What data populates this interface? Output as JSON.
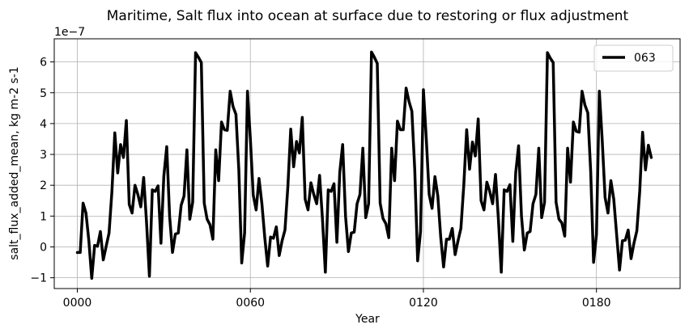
{
  "chart_data": {
    "type": "line",
    "title": "Maritime, Salt flux into ocean at surface due to restoring or flux adjustment",
    "xlabel": "Year",
    "ylabel": "salt_flux_added_mean, kg m-2 s-1",
    "y_offset_label": "1e−7",
    "x_ticks": [
      0,
      60,
      120,
      180
    ],
    "x_tick_labels": [
      "0000",
      "0060",
      "0120",
      "0180"
    ],
    "y_ticks": [
      -1,
      0,
      1,
      2,
      3,
      4,
      5,
      6
    ],
    "y_tick_labels": [
      "−1",
      "0",
      "1",
      "2",
      "3",
      "4",
      "5",
      "6"
    ],
    "xlim": [
      -8,
      209
    ],
    "ylim": [
      -1.35,
      6.75
    ],
    "grid": true,
    "legend_position": "top-right",
    "series": [
      {
        "name": "063",
        "color": "#000000",
        "x": [
          0,
          1,
          2,
          3,
          4,
          5,
          6,
          7,
          8,
          9,
          10,
          11,
          12,
          13,
          14,
          15,
          16,
          17,
          18,
          19,
          20,
          21,
          22,
          23,
          24,
          25,
          26,
          27,
          28,
          29,
          30,
          31,
          32,
          33,
          34,
          35,
          36,
          37,
          38,
          39,
          40,
          41,
          42,
          43,
          44,
          45,
          46,
          47,
          48,
          49,
          50,
          51,
          52,
          53,
          54,
          55,
          56,
          57,
          58,
          59,
          60,
          61,
          62,
          63,
          64,
          65,
          66,
          67,
          68,
          69,
          70,
          71,
          72,
          73,
          74,
          75,
          76,
          77,
          78,
          79,
          80,
          81,
          82,
          83,
          84,
          85,
          86,
          87,
          88,
          89,
          90,
          91,
          92,
          93,
          94,
          95,
          96,
          97,
          98,
          99,
          100,
          101,
          102,
          103,
          104,
          105,
          106,
          107,
          108,
          109,
          110,
          111,
          112,
          113,
          114,
          115,
          116,
          117,
          118,
          119,
          120,
          121,
          122,
          123,
          124,
          125,
          126,
          127,
          128,
          129,
          130,
          131,
          132,
          133,
          134,
          135,
          136,
          137,
          138,
          139,
          140,
          141,
          142,
          143,
          144,
          145,
          146,
          147,
          148,
          149,
          150,
          151,
          152,
          153,
          154,
          155,
          156,
          157,
          158,
          159,
          160,
          161,
          162,
          163,
          164,
          165,
          166,
          167,
          168,
          169,
          170,
          171,
          172,
          173,
          174,
          175,
          176,
          177,
          178,
          179,
          180,
          181,
          182,
          183,
          184,
          185,
          186,
          187,
          188,
          189,
          190,
          191,
          192,
          193,
          194,
          195,
          196,
          197,
          198,
          199
        ],
        "values": [
          -0.18,
          -0.18,
          1.42,
          1.1,
          0.2,
          -1.02,
          0.05,
          0.02,
          0.5,
          -0.42,
          0.02,
          0.45,
          1.8,
          3.7,
          2.4,
          3.32,
          2.9,
          4.1,
          1.38,
          1.1,
          2.0,
          1.7,
          1.3,
          2.25,
          0.8,
          -0.95,
          1.85,
          1.8,
          1.98,
          0.12,
          2.3,
          3.25,
          1.0,
          -0.18,
          0.42,
          0.45,
          1.35,
          1.65,
          3.15,
          0.9,
          1.45,
          6.3,
          6.15,
          5.98,
          1.42,
          0.9,
          0.72,
          0.25,
          3.15,
          2.15,
          4.05,
          3.8,
          3.78,
          5.05,
          4.55,
          4.3,
          2.5,
          -0.52,
          0.45,
          5.05,
          3.5,
          1.68,
          1.2,
          2.22,
          1.4,
          0.3,
          -0.62,
          0.32,
          0.28,
          0.65,
          -0.28,
          0.2,
          0.55,
          1.95,
          3.82,
          2.6,
          3.42,
          3.05,
          4.2,
          1.55,
          1.2,
          2.08,
          1.7,
          1.4,
          2.32,
          0.9,
          -0.82,
          1.85,
          1.8,
          2.05,
          0.15,
          2.42,
          3.32,
          1.0,
          -0.15,
          0.45,
          0.48,
          1.4,
          1.7,
          3.2,
          0.95,
          1.4,
          6.32,
          6.15,
          5.95,
          1.42,
          0.92,
          0.75,
          0.3,
          3.2,
          2.15,
          4.08,
          3.8,
          3.8,
          5.15,
          4.72,
          4.4,
          2.5,
          -0.45,
          0.5,
          5.1,
          3.5,
          1.7,
          1.25,
          2.28,
          1.65,
          0.32,
          -0.65,
          0.25,
          0.25,
          0.6,
          -0.25,
          0.2,
          0.6,
          2.0,
          3.8,
          2.52,
          3.4,
          2.95,
          4.15,
          1.5,
          1.2,
          2.1,
          1.8,
          1.4,
          2.35,
          0.9,
          -0.82,
          1.85,
          1.8,
          2.02,
          0.18,
          2.4,
          3.28,
          1.0,
          -0.1,
          0.45,
          0.5,
          1.4,
          1.7,
          3.2,
          0.95,
          1.45,
          6.3,
          6.12,
          5.98,
          1.45,
          0.9,
          0.78,
          0.35,
          3.2,
          2.1,
          4.05,
          3.75,
          3.72,
          5.05,
          4.6,
          4.35,
          2.45,
          -0.5,
          0.4,
          5.05,
          3.45,
          1.6,
          1.1,
          2.15,
          1.55,
          0.4,
          -0.75,
          0.2,
          0.22,
          0.55,
          -0.38,
          0.12,
          0.52,
          1.8,
          3.72,
          2.5,
          3.3,
          2.9
        ]
      }
    ]
  }
}
